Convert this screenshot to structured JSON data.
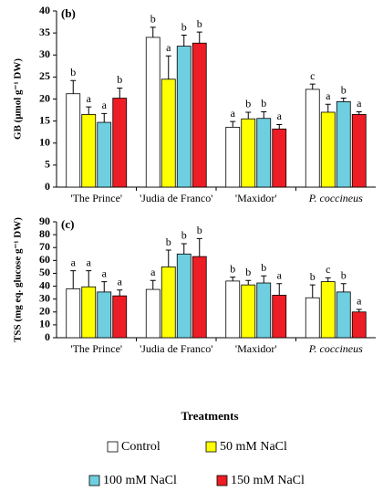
{
  "chart_data": [
    {
      "type": "bar",
      "panel_label": "(b)",
      "y_label": "GB (μmol g⁻¹ DW)",
      "categories": [
        "'The Prince'",
        "'Judia de Franco'",
        "'Maxidor'",
        "P. coccineus"
      ],
      "ylim": [
        0,
        40
      ],
      "yticks": [
        0,
        5,
        10,
        15,
        20,
        25,
        30,
        35,
        40
      ],
      "series": [
        {
          "name": "Control",
          "color": "#ffffff",
          "values": [
            21.2,
            34,
            13.6,
            22.2
          ],
          "errors": [
            3,
            2.3,
            1.3,
            1.2
          ],
          "letters": [
            "b",
            "b",
            "a",
            "c"
          ]
        },
        {
          "name": "50 mM NaCl",
          "color": "#ffff00",
          "values": [
            16.5,
            24.5,
            15.5,
            17
          ],
          "errors": [
            1.7,
            5.3,
            1.5,
            1.8
          ],
          "letters": [
            "a",
            "a",
            "b",
            "a"
          ]
        },
        {
          "name": "100 mM NaCl",
          "color": "#6fcfe0",
          "values": [
            14.7,
            32,
            15.6,
            19.4
          ],
          "errors": [
            2,
            2.5,
            1.5,
            0.8
          ],
          "letters": [
            "a",
            "b",
            "b",
            "b"
          ]
        },
        {
          "name": "150 mM NaCl",
          "color": "#ee1c24",
          "values": [
            20.2,
            32.7,
            13.2,
            16.5
          ],
          "errors": [
            2.3,
            2.5,
            1,
            0.6
          ],
          "letters": [
            "b",
            "b",
            "a",
            "a"
          ]
        }
      ]
    },
    {
      "type": "bar",
      "panel_label": "(c)",
      "y_label": "TSS (mg eq. glucose g⁻¹ DW)",
      "x_label": "Treatments",
      "categories": [
        "'The Prince'",
        "'Judia de Franco'",
        "'Maxidor'",
        "P. coccineus"
      ],
      "ylim": [
        0,
        90
      ],
      "yticks": [
        0,
        10,
        20,
        30,
        40,
        50,
        60,
        70,
        80,
        90
      ],
      "series": [
        {
          "values": [
            38,
            37.5,
            44,
            31
          ],
          "errors": [
            14,
            7,
            3,
            10
          ],
          "letters": [
            "a",
            "a",
            "b",
            "b"
          ]
        },
        {
          "values": [
            39.5,
            55,
            41,
            43.5
          ],
          "errors": [
            12.5,
            13,
            3.5,
            3
          ],
          "letters": [
            "a",
            "b",
            "b",
            "c"
          ]
        },
        {
          "values": [
            35.5,
            65,
            42.5,
            35.5
          ],
          "errors": [
            8,
            8,
            5.5,
            6.5
          ],
          "letters": [
            "a",
            "b",
            "b",
            "b"
          ]
        },
        {
          "values": [
            32.5,
            63,
            33,
            20
          ],
          "errors": [
            4.5,
            14,
            9,
            2
          ],
          "letters": [
            "a",
            "b",
            "a",
            "a"
          ]
        }
      ]
    }
  ]
}
